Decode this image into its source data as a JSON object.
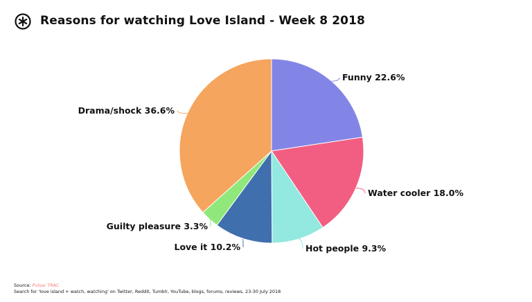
{
  "brand": {
    "logo": "pulsar-logo"
  },
  "chart_data": {
    "type": "pie",
    "title": "Reasons for watching Love Island - Week 8 2018",
    "start": "top",
    "direction": "clockwise",
    "slices": [
      {
        "label": "Funny",
        "value": 22.6,
        "display": "Funny 22.6%",
        "color": "#8385e6"
      },
      {
        "label": "Water cooler",
        "value": 18.0,
        "display": "Water cooler 18.0%",
        "color": "#f25e82"
      },
      {
        "label": "Hot people",
        "value": 9.3,
        "display": "Hot people 9.3%",
        "color": "#93e8e0"
      },
      {
        "label": "Love it",
        "value": 10.2,
        "display": "Love it 10.2%",
        "color": "#3f6fad"
      },
      {
        "label": "Guilty pleasure",
        "value": 3.3,
        "display": "Guilty pleasure 3.3%",
        "color": "#90e87a"
      },
      {
        "label": "Drama/shock",
        "value": 36.6,
        "display": "Drama/shock 36.6%",
        "color": "#f5a55e"
      }
    ]
  },
  "footer": {
    "source_label": "Source:",
    "source_name": "Pulsar TRAC",
    "source_color": "#f47c7c",
    "note": "Search for 'love island + watch, watching' on Twitter, Reddit, Tumblr, YouTube, blogs, forums, reviews, 23-30 July 2018"
  }
}
